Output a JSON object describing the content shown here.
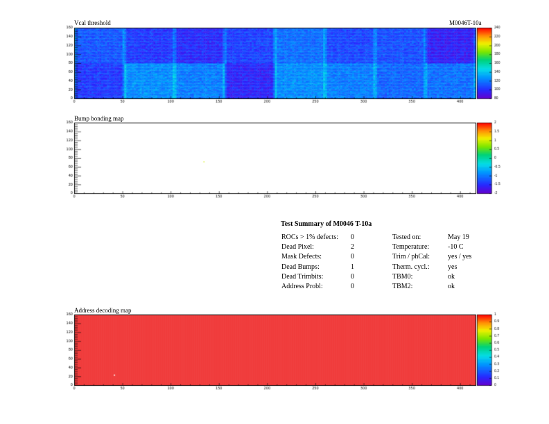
{
  "module": "M0046T-10a",
  "colors": {
    "frame": "#000000",
    "bump_fill": "#ffffff",
    "address_fill": "#f03c3c"
  },
  "chart_data": [
    {
      "type": "heatmap",
      "title": "Vcal threshold",
      "x_ticks": [
        "0",
        "50",
        "100",
        "150",
        "200",
        "250",
        "300",
        "350",
        "400"
      ],
      "y_ticks": [
        "0",
        "20",
        "40",
        "60",
        "80",
        "100",
        "120",
        "140",
        "160"
      ],
      "xlim": [
        0,
        416
      ],
      "ylim": [
        0,
        160
      ],
      "zlim": [
        80,
        240
      ],
      "z_ticks": [
        "80",
        "100",
        "120",
        "140",
        "160",
        "180",
        "200",
        "220",
        "240"
      ],
      "roc_layout": {
        "columns": 8,
        "rows": 2,
        "roc_cols": 52,
        "roc_rows": 80
      },
      "roc_means_top": [
        112,
        104,
        100,
        106,
        118,
        108,
        110,
        96
      ],
      "roc_means_bottom": [
        104,
        126,
        122,
        98,
        126,
        122,
        116,
        118
      ]
    },
    {
      "type": "heatmap",
      "title": "Bump bonding map",
      "x_ticks": [
        "0",
        "50",
        "100",
        "150",
        "200",
        "250",
        "300",
        "350",
        "400"
      ],
      "y_ticks": [
        "0",
        "20",
        "40",
        "60",
        "80",
        "100",
        "120",
        "140",
        "160"
      ],
      "xlim": [
        0,
        416
      ],
      "ylim": [
        0,
        160
      ],
      "zlim": [
        -2,
        2
      ],
      "z_ticks": [
        "-2",
        "-1.5",
        "-1",
        "-0.5",
        "0",
        "0.5",
        "1",
        "1.5",
        "2"
      ],
      "points": [
        {
          "x": 134,
          "y": 72,
          "z": 1
        }
      ]
    },
    {
      "type": "heatmap",
      "title": "Address decoding map",
      "x_ticks": [
        "0",
        "50",
        "100",
        "150",
        "200",
        "250",
        "300",
        "350",
        "400"
      ],
      "y_ticks": [
        "0",
        "20",
        "40",
        "60",
        "80",
        "100",
        "120",
        "140",
        "160"
      ],
      "xlim": [
        0,
        416
      ],
      "ylim": [
        0,
        160
      ],
      "zlim": [
        0,
        1
      ],
      "z_ticks": [
        "0",
        "0.1",
        "0.2",
        "0.3",
        "0.4",
        "0.5",
        "0.6",
        "0.7",
        "0.8",
        "0.9",
        "1"
      ],
      "fill_value": 1,
      "dead_points": [
        {
          "x": 41,
          "y": 24
        }
      ]
    }
  ],
  "summary": {
    "title": "Test Summary of M0046     T-10a",
    "left": [
      {
        "label": "ROCs > 1% defects:",
        "value": "0"
      },
      {
        "label": "Dead Pixel:",
        "value": "2"
      },
      {
        "label": "Mask Defects:",
        "value": "0"
      },
      {
        "label": "Dead Bumps:",
        "value": "1"
      },
      {
        "label": "Dead Trimbits:",
        "value": "0"
      },
      {
        "label": "Address Probl:",
        "value": "0"
      }
    ],
    "right": [
      {
        "label": "Tested on:",
        "value": "May 19"
      },
      {
        "label": "Temperature:",
        "value": "-10 C"
      },
      {
        "label": "Trim / phCal:",
        "value": "yes / yes"
      },
      {
        "label": "Therm. cycl.:",
        "value": "yes"
      },
      {
        "label": "TBM0:",
        "value": "ok"
      },
      {
        "label": "TBM2:",
        "value": "ok"
      }
    ]
  }
}
